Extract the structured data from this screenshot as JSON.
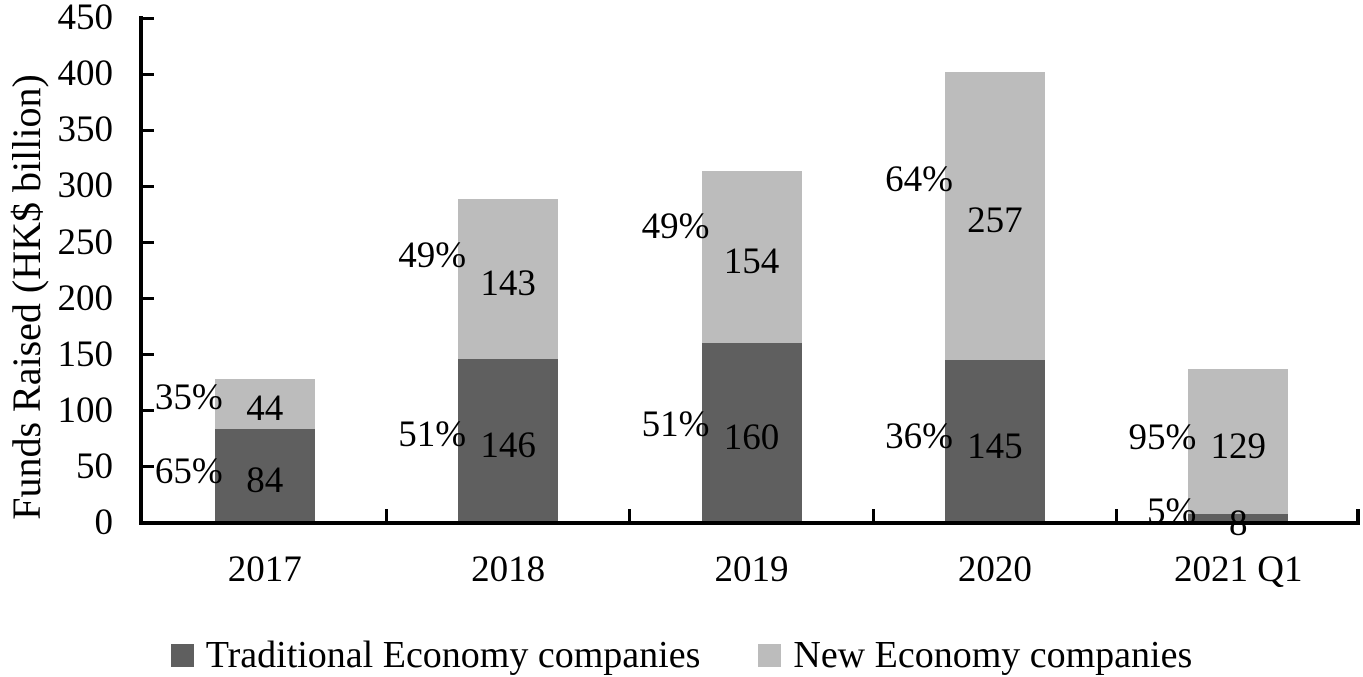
{
  "chart_data": {
    "type": "bar",
    "stacked": true,
    "title": "",
    "xlabel": "",
    "ylabel": "Funds Raised (HK$ billion)",
    "categories": [
      "2017",
      "2018",
      "2019",
      "2020",
      "2021 Q1"
    ],
    "series": [
      {
        "name": "Traditional Economy companies",
        "color": "#5F5F5F",
        "values": [
          84,
          146,
          160,
          145,
          8
        ],
        "percent_labels": [
          "65%",
          "51%",
          "51%",
          "36%",
          "5%"
        ]
      },
      {
        "name": "New Economy companies",
        "color": "#BCBCBC",
        "values": [
          44,
          143,
          154,
          257,
          129
        ],
        "percent_labels": [
          "35%",
          "49%",
          "49%",
          "64%",
          "95%"
        ]
      }
    ],
    "y_axis": {
      "min": 0,
      "max": 450,
      "step": 50,
      "tick_labels": [
        "0",
        "50",
        "100",
        "150",
        "200",
        "250",
        "300",
        "350",
        "400",
        "450"
      ]
    },
    "legend_position": "bottom",
    "grid": false
  },
  "colors": {
    "axis": "#000000",
    "background": "#FFFFFF",
    "text": "#000000"
  }
}
